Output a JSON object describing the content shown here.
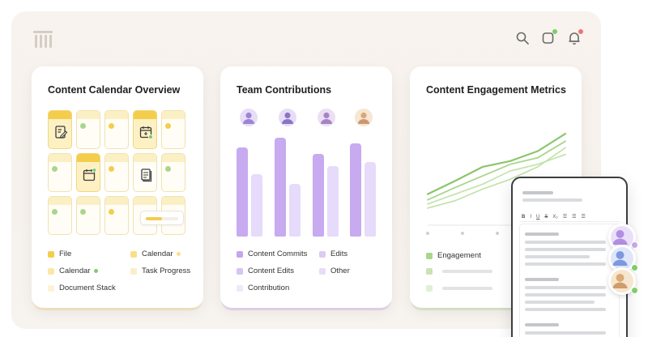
{
  "colors": {
    "accent_yellow": "#f4cd4c",
    "accent_purple": "#c4a6eb",
    "accent_green": "#a9d68c",
    "badge_green": "#7ccf6a",
    "badge_red": "#f07474"
  },
  "header": {
    "logo_icon": "pillar-logo-icon",
    "icons": [
      "search-icon",
      "app-icon",
      "bell-icon"
    ]
  },
  "calendar_card": {
    "title": "Content Calendar Overview",
    "task_progress": 0.5,
    "legend": [
      {
        "label": "File",
        "color": "#f4cd4c"
      },
      {
        "label": "Calendar",
        "color": "#f7e08a",
        "dot": "#f7e08a"
      },
      {
        "label": "Calendar",
        "color": "#fbe7a8",
        "dot": "#7ccf6a"
      },
      {
        "label": "Task Progress",
        "color": "#fbefc7"
      },
      {
        "label": "Document Stack",
        "color": "#fdf3d4"
      }
    ]
  },
  "team_card": {
    "title": "Team Contributions",
    "chart_data": {
      "type": "bar",
      "series": [
        {
          "values": [
            88,
            98,
            82,
            92
          ]
        },
        {
          "values": [
            62,
            52,
            70,
            74
          ]
        }
      ]
    },
    "legend": [
      {
        "label": "Content Commits",
        "color": "#c4a6eb"
      },
      {
        "label": "Edits",
        "color": "#dccbf4"
      },
      {
        "label": "Content Edits",
        "color": "#d6c4f1"
      },
      {
        "label": "Other",
        "color": "#e7dcf8"
      },
      {
        "label": "Contribution",
        "color": "#efe8fa"
      }
    ]
  },
  "engagement_card": {
    "title": "Content Engagement Metrics",
    "chart_data": {
      "type": "line",
      "series": [
        {
          "values": [
            22,
            38,
            55,
            62,
            74,
            95
          ]
        },
        {
          "values": [
            15,
            30,
            44,
            58,
            66,
            86
          ]
        },
        {
          "values": [
            10,
            22,
            34,
            50,
            58,
            70
          ]
        },
        {
          "values": [
            5,
            14,
            28,
            40,
            55,
            78
          ]
        }
      ]
    },
    "legend": [
      {
        "label": "Engagement",
        "color": "#a9d68c"
      }
    ]
  },
  "editor": {
    "toolbar": [
      "B",
      "I",
      "U",
      "S",
      "X₂",
      "☰",
      "☰",
      "☰"
    ]
  }
}
